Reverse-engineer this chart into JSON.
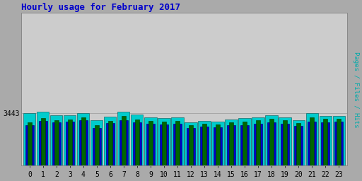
{
  "title": "Hourly usage for February 2017",
  "hours": [
    0,
    1,
    2,
    3,
    4,
    5,
    6,
    7,
    8,
    9,
    10,
    11,
    12,
    13,
    14,
    15,
    16,
    17,
    18,
    19,
    20,
    21,
    22,
    23
  ],
  "hits": [
    3443,
    3550,
    3280,
    3320,
    3440,
    2960,
    3190,
    3550,
    3350,
    3140,
    3090,
    3140,
    2840,
    2940,
    2900,
    3040,
    3090,
    3140,
    3300,
    3140,
    2990,
    3440,
    3240,
    3240
  ],
  "files": [
    2650,
    2950,
    2820,
    2870,
    2960,
    2480,
    2770,
    2980,
    2830,
    2760,
    2710,
    2720,
    2470,
    2570,
    2510,
    2650,
    2660,
    2720,
    2820,
    2720,
    2600,
    2860,
    2820,
    2870
  ],
  "pages": [
    2820,
    3100,
    2990,
    3040,
    3140,
    2650,
    2950,
    3250,
    3040,
    2940,
    2890,
    2940,
    2650,
    2750,
    2700,
    2840,
    2890,
    2960,
    3060,
    2960,
    2810,
    3160,
    3070,
    3060
  ],
  "color_pages": "#006600",
  "color_files": "#0000cc",
  "color_hits": "#00cccc",
  "color_bg": "#aaaaaa",
  "color_plot_bg": "#cccccc",
  "color_title": "#0000cc",
  "color_ylabel": "#00aaaa",
  "ylabel_right": "Pages / Files / Hits",
  "ytick_label": "3443",
  "ytick_value": 3443,
  "ymin": 0,
  "ymax": 10000,
  "bar_width": 0.3,
  "figsize": [
    5.12,
    2.56
  ],
  "dpi": 100
}
